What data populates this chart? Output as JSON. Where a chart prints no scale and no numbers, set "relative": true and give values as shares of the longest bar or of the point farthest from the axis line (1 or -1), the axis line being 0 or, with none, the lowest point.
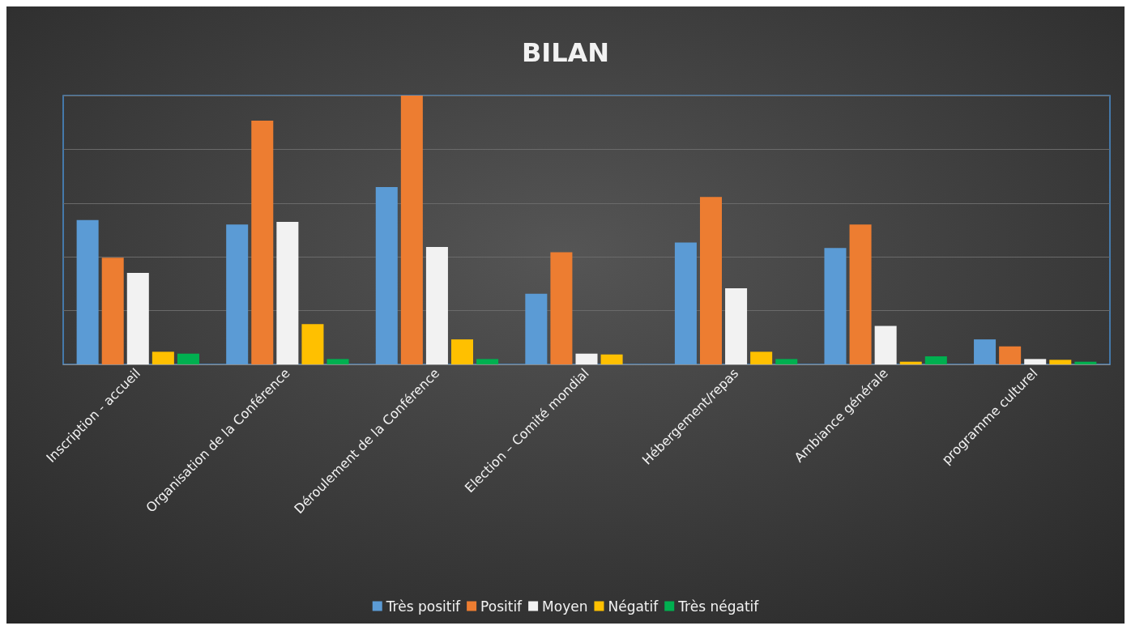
{
  "chart_data": {
    "type": "bar",
    "title": "BILAN",
    "relative": true,
    "grid": "y",
    "legend": "bottom",
    "categories": [
      "Inscription - accueil",
      "Organisation de la Conférence",
      "Déroulement de la Conférence",
      "Election – Comité mondial",
      "Hébergement/repas",
      "Ambiance générale",
      "programme culturel"
    ],
    "series": [
      {
        "name": "Très positif",
        "color": "#5b9bd5",
        "values": [
          0.537,
          0.52,
          0.66,
          0.263,
          0.453,
          0.433,
          0.093
        ]
      },
      {
        "name": "Positif",
        "color": "#ed7d31",
        "values": [
          0.397,
          0.907,
          1,
          0.417,
          0.623,
          0.52,
          0.067
        ]
      },
      {
        "name": "Moyen",
        "color": "#f2f2f2",
        "values": [
          0.34,
          0.53,
          0.437,
          0.04,
          0.283,
          0.143,
          0.02
        ]
      },
      {
        "name": "Négatif",
        "color": "#ffc000",
        "values": [
          0.047,
          0.15,
          0.093,
          0.037,
          0.047,
          0.01,
          0.017
        ]
      },
      {
        "name": "Très négatif",
        "color": "#00b050",
        "values": [
          0.04,
          0.02,
          0.02,
          0,
          0.02,
          0.03,
          0.01
        ]
      }
    ]
  }
}
